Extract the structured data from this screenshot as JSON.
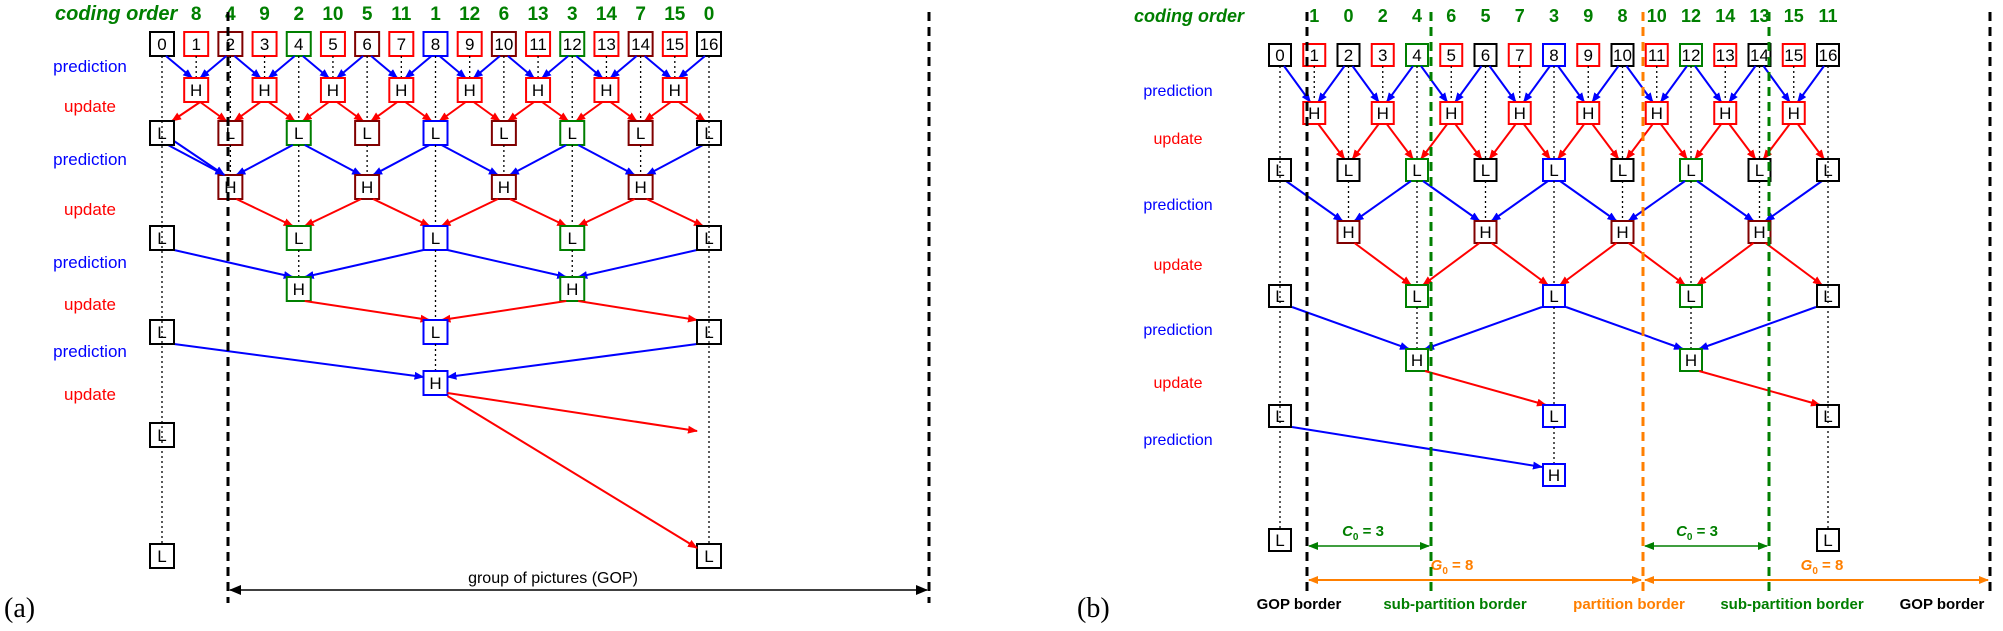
{
  "panel_a": {
    "label": "(a)",
    "coding_order_label": "coding order",
    "frames": [
      "0",
      "1",
      "2",
      "3",
      "4",
      "5",
      "6",
      "7",
      "8",
      "9",
      "10",
      "11",
      "12",
      "13",
      "14",
      "15",
      "16"
    ],
    "coding_order": [
      "8",
      "4",
      "9",
      "2",
      "10",
      "5",
      "11",
      "1",
      "12",
      "6",
      "13",
      "3",
      "14",
      "7",
      "15",
      "0"
    ],
    "row_labels": [
      "prediction",
      "update",
      "prediction",
      "update",
      "prediction",
      "update",
      "prediction",
      "update"
    ],
    "h_text": "H",
    "l_text": "L",
    "gop_label": "group of pictures (GOP)"
  },
  "panel_b": {
    "label": "(b)",
    "coding_order_label": "coding order",
    "frames": [
      "0",
      "1",
      "2",
      "3",
      "4",
      "5",
      "6",
      "7",
      "8",
      "9",
      "10",
      "11",
      "12",
      "13",
      "14",
      "15",
      "16"
    ],
    "coding_order": [
      "1",
      "0",
      "2",
      "4",
      "6",
      "5",
      "7",
      "3",
      "9",
      "8",
      "10",
      "12",
      "14",
      "13",
      "15",
      "11"
    ],
    "row_labels": [
      "prediction",
      "update",
      "prediction",
      "update",
      "prediction",
      "update",
      "prediction"
    ],
    "h_text": "H",
    "l_text": "L",
    "c0_label_prefix": "C",
    "c0_label_suffix": " = 3",
    "g0_label_prefix": "G",
    "g0_label_suffix": " = 8",
    "borders": [
      "GOP border",
      "sub-partition border",
      "partition border",
      "sub-partition border",
      "GOP border"
    ]
  },
  "colors": {
    "red": "#ff0000",
    "blue": "#0000ff",
    "green": "#007f00",
    "brown": "#800000",
    "orange": "#ff7f00",
    "black": "#000000"
  }
}
